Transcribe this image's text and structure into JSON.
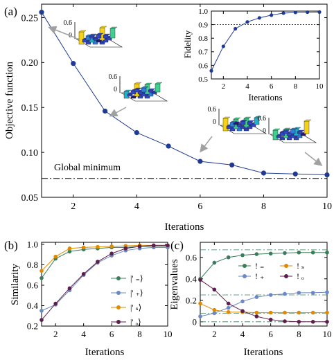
{
  "chart_data": [
    {
      "panel_label": "(a)",
      "type": "line",
      "xlabel": "Iterations",
      "ylabel": "Objective function",
      "xlim": [
        1,
        10
      ],
      "ylim": [
        0.05,
        0.265
      ],
      "xticks": [
        "2",
        "4",
        "6",
        "8",
        "10"
      ],
      "yticks": [
        "0.05",
        "0.10",
        "0.15",
        "0.20",
        "0.25"
      ],
      "x": [
        1,
        2,
        3,
        4,
        5,
        6,
        7,
        8,
        9,
        10
      ],
      "series": [
        {
          "values": [
            0.256,
            0.199,
            0.146,
            0.122,
            0.107,
            0.09,
            0.086,
            0.077,
            0.076,
            0.075
          ],
          "color": "#1f3a93"
        }
      ],
      "reference_line": {
        "value": 0.071,
        "label": "Global minimum"
      },
      "inset_bar_tick": "0.6",
      "inset_bar_zero": "0",
      "inset": {
        "type": "line",
        "xlabel": "Iterations",
        "ylabel": "Fidelity",
        "xlim": [
          1,
          10
        ],
        "ylim": [
          0.5,
          1.0
        ],
        "xticks": [
          "2",
          "4",
          "6",
          "8",
          "10"
        ],
        "yticks": [
          "0.5",
          "0.6",
          "0.7",
          "0.8",
          "0.9",
          "1.0"
        ],
        "x": [
          1,
          2,
          3,
          4,
          5,
          6,
          7,
          8,
          9,
          10
        ],
        "values": [
          0.56,
          0.74,
          0.87,
          0.92,
          0.95,
          0.97,
          0.985,
          0.99,
          0.992,
          0.993
        ],
        "reference_line": 0.9
      }
    },
    {
      "panel_label": "(b)",
      "type": "line",
      "xlabel": "Iterations",
      "ylabel": "Similarity",
      "xlim": [
        1,
        10
      ],
      "ylim": [
        0.2,
        1.02
      ],
      "xticks": [
        "2",
        "4",
        "6",
        "8",
        "10"
      ],
      "yticks": [
        "0.2",
        "0.4",
        "0.6",
        "0.8",
        "1.0"
      ],
      "x": [
        1,
        2,
        3,
        4,
        5,
        6,
        7,
        8,
        9,
        10
      ],
      "legend_position": "bottom-right",
      "series": [
        {
          "name": "|' ₌⟩",
          "color": "#3a7d5a",
          "values": [
            0.67,
            0.86,
            0.93,
            0.95,
            0.96,
            0.97,
            0.97,
            0.98,
            0.98,
            0.98
          ]
        },
        {
          "name": "|' ₊⟩",
          "color": "#6a88c2",
          "values": [
            0.35,
            0.41,
            0.55,
            0.7,
            0.82,
            0.89,
            0.94,
            0.96,
            0.97,
            0.97
          ]
        },
        {
          "name": "|' ₛ⟩",
          "color": "#e08a00",
          "values": [
            0.74,
            0.88,
            0.96,
            0.97,
            0.975,
            0.98,
            0.985,
            0.99,
            0.99,
            0.99
          ]
        },
        {
          "name": "|' ₒ⟩",
          "color": "#5a1f4a",
          "values": [
            0.26,
            0.42,
            0.57,
            0.71,
            0.83,
            0.91,
            0.96,
            0.98,
            0.99,
            0.99
          ]
        }
      ]
    },
    {
      "panel_label": "(c)",
      "type": "line",
      "xlabel": "Iterations",
      "ylabel": "Eigenvalues",
      "xlim": [
        1,
        10
      ],
      "ylim": [
        -0.04,
        0.74
      ],
      "xticks": [
        "2",
        "4",
        "6",
        "8",
        "10"
      ],
      "yticks": [
        "0",
        "0.2",
        "0.4",
        "0.6"
      ],
      "x": [
        1,
        2,
        3,
        4,
        5,
        6,
        7,
        8,
        9,
        10
      ],
      "reference_lines": [
        0.67,
        0.25,
        0.08,
        0.0
      ],
      "legend_position": "top-center",
      "series": [
        {
          "name": "! ₌",
          "color": "#3a7d5a",
          "values": [
            0.4,
            0.55,
            0.6,
            0.62,
            0.63,
            0.635,
            0.64,
            0.645,
            0.645,
            0.645
          ]
        },
        {
          "name": "! ₊",
          "color": "#6a88c2",
          "values": [
            0.05,
            0.08,
            0.13,
            0.19,
            0.23,
            0.25,
            0.26,
            0.27,
            0.27,
            0.275
          ]
        },
        {
          "name": "! ₛ",
          "color": "#e08a00",
          "values": [
            0.17,
            0.11,
            0.09,
            0.09,
            0.085,
            0.085,
            0.085,
            0.085,
            0.085,
            0.085
          ]
        },
        {
          "name": "! ₒ",
          "color": "#5a1f4a",
          "values": [
            0.39,
            0.3,
            0.17,
            0.1,
            0.05,
            0.02,
            0.005,
            0.0,
            0.0,
            0.0
          ]
        }
      ]
    }
  ]
}
